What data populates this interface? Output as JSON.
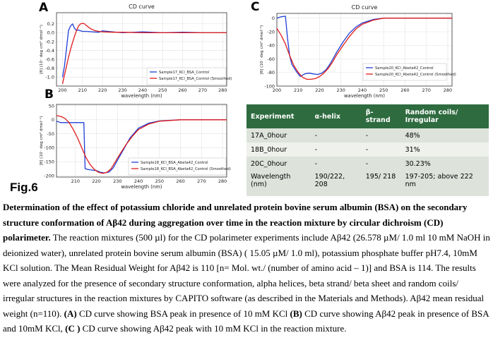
{
  "figure_label": "Fig.6",
  "chart_data": [
    {
      "panel": "A",
      "type": "line",
      "title": "CD curve",
      "xlabel": "wavelength (nm)",
      "ylabel": "[θ] (10⁻ deg cm² dmol⁻¹)",
      "xlim": [
        197,
        282
      ],
      "ylim": [
        -1.2,
        0.45
      ],
      "xticks": [
        200,
        210,
        220,
        230,
        240,
        250,
        260,
        270,
        280
      ],
      "yticks": [
        0.2,
        0.0,
        -0.2,
        -0.4,
        -0.6,
        -0.8,
        -1.0
      ],
      "ytick_labels": [
        "0.2",
        "0.0",
        "-0.2",
        "-0.4",
        "-0.6",
        "-0.8",
        "-1.0"
      ],
      "legend": "bottom-right",
      "grid": true,
      "series": [
        {
          "name": "Sample17_KCl_BSA_Control",
          "color": "#1f3fd6",
          "x": [
            200,
            201,
            202,
            203,
            204,
            205,
            206,
            207,
            208,
            209,
            210,
            212,
            215,
            218,
            220,
            225,
            230,
            240,
            250,
            260,
            270,
            282
          ],
          "y": [
            -1.0,
            -0.75,
            -0.35,
            0.05,
            0.15,
            0.2,
            0.1,
            0.05,
            0.06,
            0.04,
            0.03,
            0.03,
            0.02,
            0.01,
            0.04,
            0.02,
            0.0,
            0.02,
            0.0,
            0.01,
            0.0,
            0.0
          ]
        },
        {
          "name": "Sample17_KCl_BSA_Control (Smoothed)",
          "color": "#e01b1b",
          "x": [
            200,
            201,
            202,
            203,
            204,
            205,
            206,
            207,
            208,
            209,
            210,
            211,
            212,
            214,
            216,
            218,
            220,
            225,
            230,
            240,
            250,
            260,
            270,
            282
          ],
          "y": [
            -1.15,
            -0.95,
            -0.75,
            -0.55,
            -0.38,
            -0.22,
            -0.08,
            0.05,
            0.15,
            0.2,
            0.21,
            0.2,
            0.16,
            0.09,
            0.05,
            0.03,
            0.02,
            0.01,
            0.01,
            0.0,
            0.0,
            0.0,
            0.0,
            0.0
          ]
        }
      ]
    },
    {
      "panel": "B",
      "type": "line",
      "title": "",
      "xlabel": "wavelength (nm)",
      "ylabel": "[θ] (10⁻ deg cm² dmol⁻¹)",
      "xlim": [
        201,
        282
      ],
      "ylim": [
        -205,
        55
      ],
      "xticks": [
        210,
        220,
        230,
        240,
        250,
        260,
        270,
        280
      ],
      "yticks": [
        50,
        0,
        -50,
        -100,
        -150,
        -200
      ],
      "ytick_labels": [
        "50",
        "0",
        "-50",
        "-100",
        "-150",
        "-200"
      ],
      "legend": "bottom-right",
      "grid": true,
      "series": [
        {
          "name": "Sample18_KCl_BSA_Abeta42_Control",
          "color": "#1f3fd6",
          "x": [
            201,
            203,
            205,
            210,
            214,
            214.6,
            216,
            218,
            220,
            222,
            224,
            226,
            228,
            230,
            233,
            236,
            240,
            245,
            250,
            260,
            270,
            282
          ],
          "y": [
            -5,
            -10,
            -10,
            -10,
            -10,
            -175,
            -178,
            -180,
            -182,
            -188,
            -190,
            -187,
            -172,
            -145,
            -105,
            -65,
            -30,
            -12,
            -4,
            0,
            0,
            0
          ]
        },
        {
          "name": "Sample18_KCl_BSA_Abeta42_Control (Smoothed)",
          "color": "#e01b1b",
          "x": [
            201,
            203,
            205,
            207,
            209,
            211,
            213,
            215,
            217,
            219,
            221,
            223,
            225,
            227,
            229,
            231,
            234,
            237,
            240,
            245,
            250,
            260,
            270,
            282
          ],
          "y": [
            15,
            12,
            5,
            -10,
            -35,
            -65,
            -100,
            -135,
            -160,
            -178,
            -188,
            -192,
            -188,
            -175,
            -150,
            -125,
            -90,
            -60,
            -35,
            -15,
            -5,
            0,
            0,
            0
          ]
        }
      ]
    },
    {
      "panel": "C",
      "type": "line",
      "title": "CD curve",
      "xlabel": "wavelength (nm)",
      "ylabel": "[θ] (10⁻ deg cm² dmol⁻¹)",
      "xlim": [
        200,
        282
      ],
      "ylim": [
        -100,
        7
      ],
      "xticks": [
        200,
        210,
        220,
        230,
        240,
        250,
        260,
        270,
        280
      ],
      "yticks": [
        0,
        -20,
        -40,
        -60,
        -80,
        -100
      ],
      "ytick_labels": [
        "0",
        "-20",
        "-40",
        "-60",
        "-80",
        "-100"
      ],
      "legend": "bottom-left",
      "grid": true,
      "series": [
        {
          "name": "Sample20_KCl_Abeta42_Control",
          "color": "#1f3fd6",
          "x": [
            200,
            202,
            204,
            205,
            206,
            207,
            209,
            211,
            213,
            215,
            217,
            219,
            221,
            223,
            225,
            228,
            231,
            234,
            237,
            240,
            245,
            250,
            260,
            270,
            282
          ],
          "y": [
            0,
            2,
            3,
            -30,
            -55,
            -68,
            -78,
            -86,
            -82,
            -81,
            -82,
            -83,
            -81,
            -76,
            -67,
            -50,
            -35,
            -22,
            -13,
            -7,
            -2,
            0,
            0,
            0,
            0
          ]
        },
        {
          "name": "Sample20_KCl_Abeta42_Control (Smoothed)",
          "color": "#e01b1b",
          "x": [
            200,
            202,
            204,
            206,
            208,
            210,
            212,
            214,
            216,
            218,
            220,
            222,
            224,
            226,
            228,
            231,
            234,
            237,
            240,
            245,
            250,
            260,
            270,
            282
          ],
          "y": [
            -15,
            -25,
            -38,
            -55,
            -70,
            -80,
            -87,
            -90,
            -90,
            -89,
            -86,
            -81,
            -74,
            -65,
            -54,
            -40,
            -27,
            -16,
            -9,
            -3,
            0,
            0,
            0,
            0
          ]
        }
      ]
    }
  ],
  "table": {
    "headers": [
      "Experiment",
      "α-helix",
      "β-strand",
      "Random coils/ Irregular"
    ],
    "rows": [
      [
        "17A_0hour",
        "-",
        "-",
        "48%"
      ],
      [
        "18B_0hour",
        "-",
        "-",
        "31%"
      ],
      [
        "20C_0hour",
        "-",
        "-",
        "30.23%"
      ],
      [
        "Wavelength (nm)",
        "190/222, 208",
        "195/ 218",
        "197-205; above 222 nm"
      ]
    ]
  },
  "caption": {
    "title": "Determination of the effect of potassium chloride and unrelated protein bovine serum albumin (BSA) on the secondary structure conformation of Aβ42 during aggregation over time in the reaction mixture by circular dichroism (CD) polarimeter.",
    "body": " The reaction mixtures (500 µl) for the CD polarimeter experiments include Aβ42 (26.578 µM/ 1.0 ml 10 mM NaOH in deionized water), unrelated protein bovine serum albumin (BSA) ( 15.05 µM/ 1.0 ml), potassium phosphate buffer pH7.4, 10mM KCl solution. The Mean Residual Weight for Aβ42 is 110 [n= Mol. wt./ (number of amino acid – 1)] and BSA is 114.  The results were analyzed for the presence of secondary structure conformation, alpha helices, beta strand/ beta sheet and random coils/ irregular structures in the reaction mixtures by CAPITO software (as described in the Materials and Methods). Aβ42 mean residual weight (n=110). ",
    "label_a": "(A)",
    "text_a": " CD curve showing BSA peak in presence of 10 mM KCl ",
    "label_b": "(B)",
    "text_b": " CD curve showing Aβ42 peak in presence of BSA and 10mM KCl, ",
    "label_c": "(C )",
    "text_c": " CD curve showing Aβ42 peak with 10 mM KCl in the reaction mixture."
  }
}
